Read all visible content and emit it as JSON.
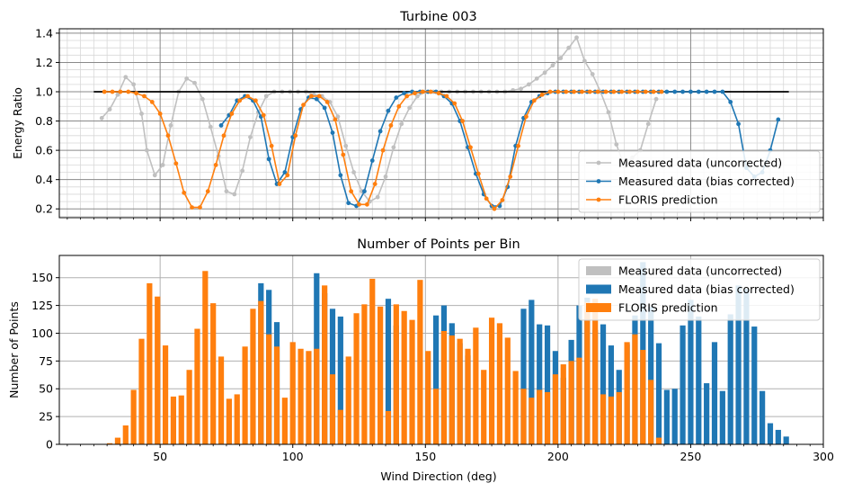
{
  "colors": {
    "uncorrected": "#c0c0c0",
    "bias_corrected": "#1f77b4",
    "floris": "#ff7f0e",
    "reference_line": "#000000",
    "major_grid": "#b0b0b0",
    "minor_grid": "#d8d8d8"
  },
  "chart_data": [
    {
      "type": "line",
      "title": "Turbine 003",
      "xlabel": "",
      "ylabel": "Energy Ratio",
      "xlim": [
        12,
        300
      ],
      "ylim": [
        0.14,
        1.43
      ],
      "yticks": [
        0.2,
        0.4,
        0.6,
        0.8,
        1.0,
        1.2,
        1.4
      ],
      "ytick_labels": [
        "0.2",
        "0.4",
        "0.6",
        "0.8",
        "1.0",
        "1.2",
        "1.4"
      ],
      "grid": "major and minor",
      "legend": "lower-right",
      "reference_line": {
        "x": [
          25,
          287
        ],
        "y": [
          1.0,
          1.0
        ]
      },
      "series": [
        {
          "name": "Measured data (uncorrected)",
          "x": [
            28,
            31,
            34,
            37,
            40,
            43,
            45,
            48,
            51,
            54,
            57,
            60,
            63,
            66,
            69,
            72,
            75,
            78,
            81,
            84,
            87,
            90,
            93,
            96,
            99,
            102,
            105,
            108,
            111,
            114,
            117,
            120,
            123,
            126,
            129,
            132,
            135,
            138,
            141,
            144,
            147,
            150,
            153,
            156,
            159,
            162,
            165,
            168,
            171,
            174,
            177,
            180,
            183,
            186,
            189,
            192,
            195,
            198,
            201,
            204,
            207,
            210,
            213,
            216,
            219,
            222,
            225,
            228,
            231,
            234,
            237
          ],
          "y": [
            0.82,
            0.88,
            0.98,
            1.1,
            1.05,
            0.85,
            0.6,
            0.43,
            0.5,
            0.77,
            1.0,
            1.09,
            1.06,
            0.95,
            0.76,
            0.56,
            0.32,
            0.3,
            0.46,
            0.69,
            0.86,
            0.97,
            1.0,
            1.0,
            1.0,
            1.0,
            1.0,
            0.98,
            0.97,
            0.93,
            0.83,
            0.63,
            0.45,
            0.32,
            0.25,
            0.28,
            0.42,
            0.62,
            0.78,
            0.89,
            0.97,
            1.0,
            1.0,
            1.0,
            1.0,
            1.0,
            1.0,
            1.0,
            1.0,
            1.0,
            1.0,
            1.0,
            1.01,
            1.02,
            1.05,
            1.09,
            1.13,
            1.18,
            1.23,
            1.3,
            1.37,
            1.21,
            1.12,
            1.0,
            0.86,
            0.64,
            0.49,
            0.55,
            0.6,
            0.78,
            0.95
          ]
        },
        {
          "name": "Measured data (bias corrected)",
          "x": [
            73,
            76,
            79,
            82,
            85,
            88,
            91,
            94,
            97,
            100,
            103,
            106,
            109,
            112,
            115,
            118,
            121,
            124,
            127,
            130,
            133,
            136,
            139,
            142,
            145,
            148,
            151,
            154,
            157,
            160,
            163,
            166,
            169,
            172,
            175,
            178,
            181,
            184,
            187,
            190,
            193,
            196,
            199,
            202,
            205,
            208,
            211,
            214,
            217,
            220,
            223,
            226,
            229,
            232,
            235,
            238,
            241,
            244,
            247,
            250,
            253,
            256,
            259,
            262,
            265,
            268,
            271,
            274,
            277,
            280,
            283
          ],
          "y": [
            0.77,
            0.84,
            0.94,
            0.97,
            0.94,
            0.83,
            0.54,
            0.37,
            0.45,
            0.69,
            0.88,
            0.96,
            0.95,
            0.89,
            0.72,
            0.43,
            0.24,
            0.22,
            0.32,
            0.53,
            0.73,
            0.87,
            0.96,
            0.99,
            1.0,
            1.0,
            1.0,
            1.0,
            0.97,
            0.92,
            0.8,
            0.62,
            0.44,
            0.3,
            0.22,
            0.22,
            0.35,
            0.63,
            0.82,
            0.93,
            0.97,
            0.99,
            1.0,
            1.0,
            1.0,
            1.0,
            1.0,
            1.0,
            1.0,
            1.0,
            1.0,
            1.0,
            1.0,
            1.0,
            1.0,
            1.0,
            1.0,
            1.0,
            1.0,
            1.0,
            1.0,
            1.0,
            1.0,
            1.0,
            0.93,
            0.78,
            0.48,
            0.42,
            0.45,
            0.6,
            0.81
          ]
        },
        {
          "name": "FLORIS prediction",
          "x": [
            29,
            32,
            35,
            38,
            41,
            44,
            47,
            50,
            53,
            56,
            59,
            62,
            65,
            68,
            71,
            74,
            77,
            80,
            83,
            86,
            89,
            92,
            95,
            98,
            101,
            104,
            107,
            110,
            113,
            116,
            119,
            122,
            125,
            128,
            131,
            134,
            137,
            140,
            143,
            146,
            149,
            152,
            155,
            158,
            161,
            164,
            167,
            170,
            173,
            176,
            179,
            182,
            185,
            188,
            191,
            194,
            197,
            200,
            203,
            206,
            209,
            212,
            215,
            218,
            221,
            224,
            227,
            230,
            233,
            236,
            239
          ],
          "y": [
            1.0,
            1.0,
            1.0,
            1.0,
            0.99,
            0.97,
            0.93,
            0.85,
            0.7,
            0.51,
            0.31,
            0.21,
            0.21,
            0.32,
            0.5,
            0.7,
            0.85,
            0.94,
            0.97,
            0.94,
            0.84,
            0.63,
            0.37,
            0.43,
            0.7,
            0.91,
            0.97,
            0.97,
            0.93,
            0.81,
            0.57,
            0.32,
            0.23,
            0.23,
            0.37,
            0.6,
            0.77,
            0.9,
            0.97,
            0.99,
            1.0,
            1.0,
            0.99,
            0.97,
            0.92,
            0.8,
            0.62,
            0.44,
            0.27,
            0.2,
            0.26,
            0.42,
            0.63,
            0.83,
            0.94,
            0.98,
            1.0,
            1.0,
            1.0,
            1.0,
            1.0,
            1.0,
            1.0,
            1.0,
            1.0,
            1.0,
            1.0,
            1.0,
            1.0,
            1.0,
            1.0
          ]
        }
      ]
    },
    {
      "type": "bar",
      "title": "Number of Points per Bin",
      "xlabel": "Wind Direction (deg)",
      "ylabel": "Number of Points",
      "xlim": [
        12,
        300
      ],
      "ylim": [
        0,
        170
      ],
      "xticks": [
        50,
        100,
        150,
        200,
        250,
        300
      ],
      "xtick_labels": [
        "50",
        "100",
        "150",
        "200",
        "250",
        "300"
      ],
      "yticks": [
        0,
        25,
        50,
        75,
        100,
        125,
        150
      ],
      "ytick_labels": [
        "0",
        "25",
        "50",
        "75",
        "100",
        "125",
        "150"
      ],
      "grid": "major",
      "legend": "top-right",
      "bar_width": 2.1,
      "series": [
        {
          "name": "Measured data (uncorrected)",
          "x": [],
          "values": []
        },
        {
          "name": "Measured data (bias corrected)",
          "x": [
            88,
            91,
            94,
            109,
            112,
            115,
            118,
            136,
            139,
            154,
            157,
            160,
            163,
            166,
            187,
            190,
            193,
            196,
            199,
            202,
            205,
            208,
            211,
            214,
            217,
            220,
            223,
            226,
            229,
            232,
            235,
            238,
            241,
            244,
            247,
            250,
            253,
            256,
            259,
            262,
            265,
            268,
            271,
            274,
            277,
            280,
            283,
            286
          ],
          "values": [
            145,
            139,
            110,
            154,
            136,
            122,
            115,
            131,
            107,
            116,
            125,
            109,
            91,
            80,
            122,
            130,
            108,
            107,
            84,
            60,
            94,
            125,
            132,
            103,
            108,
            89,
            67,
            90,
            116,
            164,
            124,
            91,
            49,
            50,
            107,
            130,
            115,
            55,
            92,
            48,
            117,
            143,
            140,
            106,
            48,
            19,
            13,
            7
          ]
        },
        {
          "name": "FLORIS prediction",
          "x": [
            31,
            34,
            37,
            40,
            43,
            46,
            49,
            52,
            55,
            58,
            61,
            64,
            67,
            70,
            73,
            76,
            79,
            82,
            85,
            88,
            91,
            94,
            97,
            100,
            103,
            106,
            109,
            112,
            115,
            118,
            121,
            124,
            127,
            130,
            133,
            136,
            139,
            142,
            145,
            148,
            151,
            154,
            157,
            160,
            163,
            166,
            169,
            172,
            175,
            178,
            181,
            184,
            187,
            190,
            193,
            196,
            199,
            202,
            205,
            208,
            211,
            214,
            217,
            220,
            223,
            226,
            229,
            232,
            235,
            238
          ],
          "values": [
            1,
            6,
            17,
            49,
            95,
            145,
            133,
            89,
            43,
            44,
            67,
            104,
            156,
            127,
            79,
            41,
            45,
            88,
            122,
            129,
            99,
            88,
            42,
            92,
            86,
            84,
            86,
            143,
            63,
            31,
            79,
            118,
            126,
            149,
            124,
            30,
            126,
            120,
            112,
            148,
            84,
            50,
            102,
            98,
            95,
            86,
            105,
            67,
            114,
            109,
            96,
            66,
            50,
            42,
            49,
            47,
            63,
            72,
            75,
            78,
            128,
            131,
            45,
            43,
            47,
            92,
            99,
            85,
            58,
            6
          ]
        }
      ]
    }
  ]
}
